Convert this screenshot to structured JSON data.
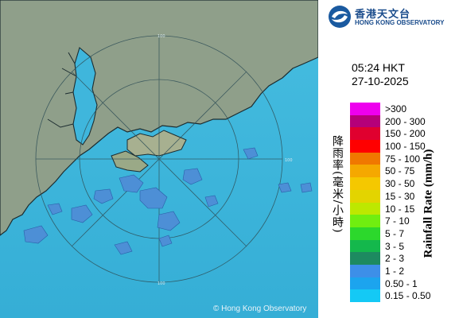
{
  "logo": {
    "name_zh": "香港天文台",
    "name_en": "HONG KONG OBSERVATORY"
  },
  "map": {
    "copyright": "© Hong Kong Observatory",
    "range_ring_labels": [
      "100",
      "100",
      "100"
    ],
    "colors": {
      "sea": "#3fb6dc",
      "land": "#8f9f8a",
      "coast": "#1c2c30",
      "rings": "#2f4f57",
      "echo": "#4d8fd6"
    }
  },
  "timestamp": {
    "time": "05:24 HKT",
    "date": "27-10-2025"
  },
  "legend": {
    "label_zh": "降雨率(毫米/小時)",
    "label_en": "Rainfall Rate (mm/h)",
    "items": [
      {
        "label": ">300",
        "color": "#ee00ee"
      },
      {
        "label": "200 - 300",
        "color": "#b50079"
      },
      {
        "label": "150 - 200",
        "color": "#e0002f"
      },
      {
        "label": "100 - 150",
        "color": "#ff0000"
      },
      {
        "label": "75 - 100",
        "color": "#f07800"
      },
      {
        "label": "50 - 75",
        "color": "#f5a800"
      },
      {
        "label": "30 - 50",
        "color": "#f5c800"
      },
      {
        "label": "15 - 30",
        "color": "#e3d400"
      },
      {
        "label": "10 - 15",
        "color": "#bde800"
      },
      {
        "label": "7 - 10",
        "color": "#70ee10"
      },
      {
        "label": "5 - 7",
        "color": "#2cd82c"
      },
      {
        "label": "3 - 5",
        "color": "#14b84c"
      },
      {
        "label": "2 - 3",
        "color": "#1d8a60"
      },
      {
        "label": "1 - 2",
        "color": "#3d8fe8"
      },
      {
        "label": "0.50 - 1",
        "color": "#1ca4ee"
      },
      {
        "label": "0.15 - 0.50",
        "color": "#14c9f5"
      }
    ]
  }
}
